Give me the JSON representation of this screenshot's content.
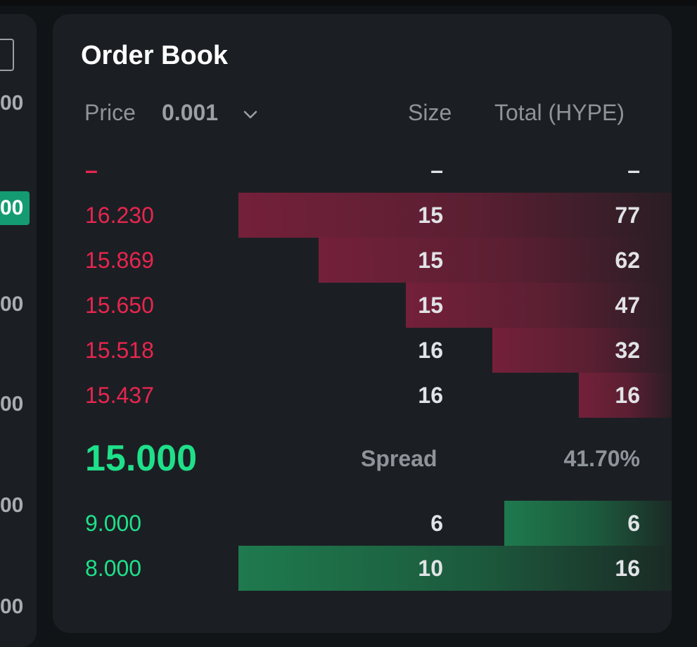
{
  "left_panel": {
    "ticks": [
      "00",
      "00",
      "00",
      "00",
      "00",
      "00"
    ],
    "badge": "00"
  },
  "order_book": {
    "title": "Order Book",
    "headers": {
      "price": "Price",
      "tick_size": "0.001",
      "size": "Size",
      "total": "Total (HYPE)"
    },
    "placeholder_row": {
      "price": "–",
      "size": "–",
      "total": "–"
    },
    "asks": [
      {
        "price": "16.230",
        "size": "15",
        "total": "77",
        "depth": 0.7
      },
      {
        "price": "15.869",
        "size": "15",
        "total": "62",
        "depth": 0.57
      },
      {
        "price": "15.650",
        "size": "15",
        "total": "47",
        "depth": 0.43
      },
      {
        "price": "15.518",
        "size": "16",
        "total": "32",
        "depth": 0.29
      },
      {
        "price": "15.437",
        "size": "16",
        "total": "16",
        "depth": 0.15
      }
    ],
    "mid_price": "15.000",
    "spread_label": "Spread",
    "spread_value": "41.70%",
    "bids": [
      {
        "price": "9.000",
        "size": "6",
        "total": "6",
        "depth": 0.27
      },
      {
        "price": "8.000",
        "size": "10",
        "total": "16",
        "depth": 0.7
      }
    ],
    "colors": {
      "ask": "#e8254f",
      "bid": "#1fe08a",
      "panel": "#1b1f23",
      "background": "#111417"
    }
  }
}
